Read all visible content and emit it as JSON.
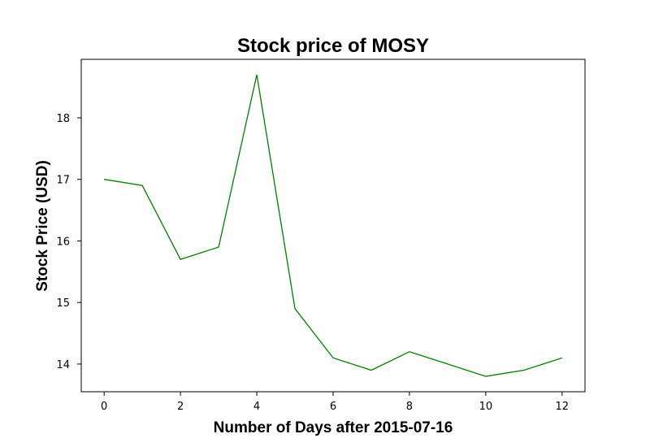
{
  "chart_data": {
    "type": "line",
    "title": "Stock price of MOSY",
    "xlabel": "Number of Days after 2015-07-16",
    "ylabel": "Stock Price (USD)",
    "x": [
      0,
      1,
      2,
      3,
      4,
      5,
      6,
      7,
      8,
      9,
      10,
      11,
      12
    ],
    "series": [
      {
        "values": [
          17.0,
          16.9,
          15.7,
          15.9,
          18.7,
          14.9,
          14.1,
          13.9,
          14.2,
          14.0,
          13.8,
          13.9,
          14.1
        ],
        "color": "#008000"
      }
    ],
    "xlim": [
      -0.6,
      12.6
    ],
    "ylim": [
      13.55,
      18.95
    ],
    "xticks": [
      0,
      2,
      4,
      6,
      8,
      10,
      12
    ],
    "yticks": [
      14,
      15,
      16,
      17,
      18
    ],
    "grid": false
  }
}
